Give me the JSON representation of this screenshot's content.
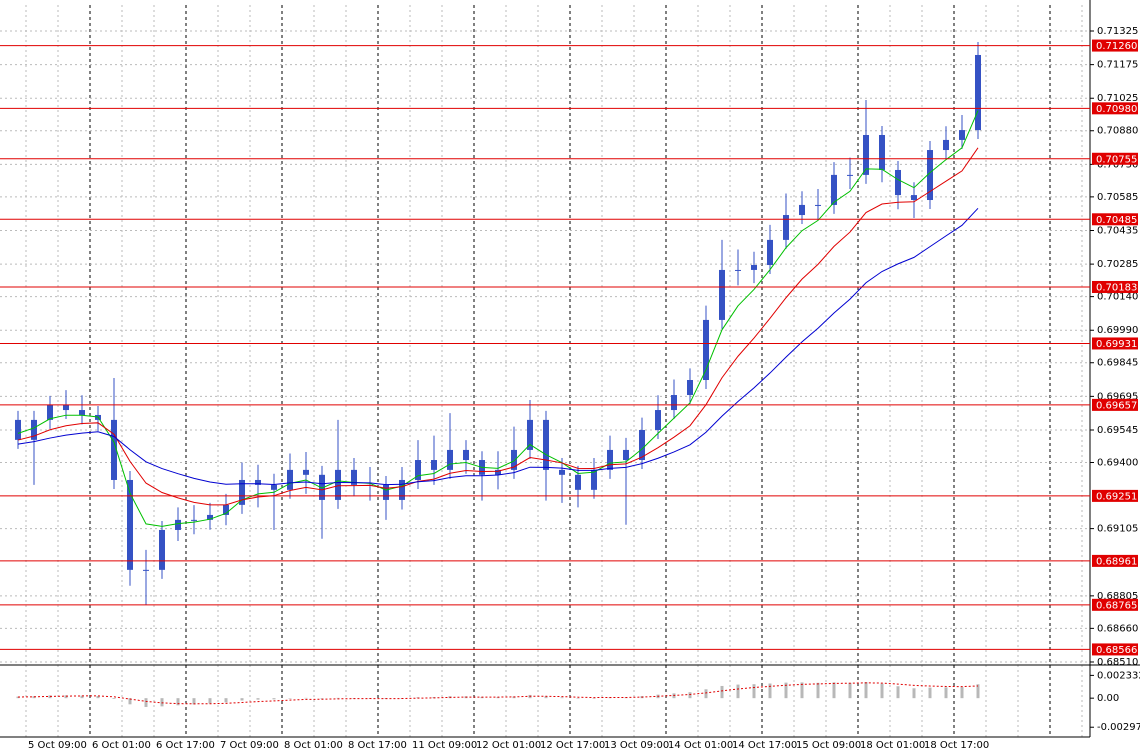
{
  "chart_data": [
    {
      "type": "candlestick",
      "categories": [
        null,
        "5 Oct 09:00",
        null,
        null,
        null,
        "6 Oct 01:00",
        null,
        null,
        null,
        "6 Oct 17:00",
        null,
        null,
        null,
        "7 Oct 09:00",
        null,
        null,
        null,
        "8 Oct 01:00",
        null,
        null,
        null,
        "8 Oct 17:00",
        null,
        null,
        null,
        "11 Oct 09:00",
        null,
        null,
        null,
        "12 Oct 01:00",
        null,
        null,
        null,
        "12 Oct 17:00",
        null,
        null,
        null,
        "13 Oct 09:00",
        null,
        null,
        null,
        "14 Oct 01:00",
        null,
        null,
        null,
        "14 Oct 17:00",
        null,
        null,
        null,
        "15 Oct 09:00",
        null,
        null,
        null,
        "18 Oct 01:00",
        null,
        null,
        null,
        "18 Oct 17:00",
        null,
        null,
        null
      ],
      "open": [
        0.6959,
        0.69501,
        0.6959,
        0.69657,
        0.69634,
        0.69612,
        0.6959,
        0.69322,
        0.68921,
        0.68921,
        0.69099,
        0.69144,
        0.69144,
        0.69166,
        0.69211,
        0.69322,
        0.693,
        0.69278,
        0.69367,
        0.69345,
        0.69233,
        0.69367,
        0.693,
        0.693,
        0.69233,
        0.69322,
        0.69411,
        0.69367,
        0.69456,
        0.69411,
        0.69345,
        0.69367,
        0.69456,
        0.6959,
        0.69367,
        0.69345,
        0.69278,
        0.69367,
        0.69456,
        0.69411,
        0.69545,
        0.69634,
        0.69701,
        0.69768,
        0.70036,
        0.70259,
        0.70259,
        0.70281,
        0.70393,
        0.70504,
        0.70549,
        0.70549,
        0.70683,
        0.70683,
        0.70861,
        0.70705,
        0.70593,
        0.70571,
        0.70794,
        0.70839,
        0.70883
      ],
      "high": [
        0.6963,
        0.6963,
        0.69697,
        0.69723,
        0.697,
        0.69652,
        0.69777,
        0.69362,
        0.6901,
        0.69139,
        0.692,
        0.6921,
        0.6922,
        0.6926,
        0.694,
        0.6939,
        0.6935,
        0.6944,
        0.69447,
        0.69385,
        0.6959,
        0.6942,
        0.6938,
        0.6934,
        0.6938,
        0.695,
        0.6952,
        0.6962,
        0.695,
        0.6945,
        0.6945,
        0.6956,
        0.69679,
        0.6963,
        0.6942,
        0.69385,
        0.6942,
        0.6952,
        0.6951,
        0.696,
        0.697,
        0.6977,
        0.6982,
        0.701,
        0.70393,
        0.7035,
        0.7034,
        0.7046,
        0.706,
        0.7061,
        0.7062,
        0.7074,
        0.7076,
        0.71017,
        0.70901,
        0.70745,
        0.7065,
        0.70834,
        0.709,
        0.7095,
        0.71276
      ],
      "low": [
        0.69461,
        0.693,
        0.6955,
        0.69594,
        0.6957,
        0.6954,
        0.69282,
        0.6885,
        0.68765,
        0.68881,
        0.6905,
        0.6908,
        0.691,
        0.6912,
        0.69171,
        0.692,
        0.69099,
        0.69238,
        0.6926,
        0.6906,
        0.69193,
        0.6925,
        0.6923,
        0.69144,
        0.6919,
        0.69282,
        0.693,
        0.69327,
        0.6935,
        0.6923,
        0.6928,
        0.69327,
        0.69416,
        0.6923,
        0.6922,
        0.692,
        0.69238,
        0.69327,
        0.69122,
        0.69371,
        0.69505,
        0.69594,
        0.69661,
        0.69728,
        0.69996,
        0.7019,
        0.702,
        0.70241,
        0.70353,
        0.70464,
        0.7048,
        0.70509,
        0.7062,
        0.70643,
        0.7065,
        0.7053,
        0.70491,
        0.70531,
        0.70754,
        0.70799,
        0.70843
      ],
      "close": [
        0.69501,
        0.6959,
        0.69657,
        0.69634,
        0.69612,
        0.6959,
        0.69322,
        0.68921,
        0.68921,
        0.69099,
        0.69144,
        0.69144,
        0.69166,
        0.69211,
        0.69322,
        0.693,
        0.69278,
        0.69367,
        0.69345,
        0.69233,
        0.69367,
        0.693,
        0.693,
        0.69233,
        0.69322,
        0.69411,
        0.69367,
        0.69456,
        0.69411,
        0.69345,
        0.69367,
        0.69456,
        0.6959,
        0.69367,
        0.69345,
        0.69278,
        0.69367,
        0.69456,
        0.69411,
        0.69545,
        0.69634,
        0.69701,
        0.69768,
        0.70036,
        0.70259,
        0.70259,
        0.70281,
        0.70393,
        0.70504,
        0.70549,
        0.70549,
        0.70683,
        0.70683,
        0.70861,
        0.70705,
        0.70593,
        0.70571,
        0.70794,
        0.70839,
        0.70883,
        0.71218
      ],
      "color": "#3552c4",
      "series": [
        {
          "color": "#00c000",
          "values": [
            0.6953,
            0.69554,
            0.69595,
            0.69611,
            0.69611,
            0.69603,
            0.69491,
            0.69263,
            0.69126,
            0.69115,
            0.69127,
            0.69134,
            0.69147,
            0.69173,
            0.69233,
            0.6926,
            0.69267,
            0.69307,
            0.69322,
            0.69286,
            0.69318,
            0.69311,
            0.69307,
            0.69277,
            0.69295,
            0.69341,
            0.69351,
            0.69393,
            0.694,
            0.69378,
            0.69374,
            0.69407,
            0.6948,
            0.69435,
            0.69399,
            0.69351,
            0.69357,
            0.69397,
            0.69403,
            0.6946,
            0.6953,
            0.69598,
            0.69666,
            0.69814,
            0.69992,
            0.70099,
            0.70172,
            0.7026,
            0.70358,
            0.70434,
            0.7048,
            0.70561,
            0.7061,
            0.7071,
            0.70708,
            0.70662,
            0.70626,
            0.70693,
            0.70751,
            0.70804,
            0.7097
          ]
        },
        {
          "color": "#e00000",
          "values": [
            0.695,
            0.69518,
            0.69546,
            0.69564,
            0.69574,
            0.69577,
            0.69526,
            0.69405,
            0.69308,
            0.69266,
            0.69242,
            0.69222,
            0.69211,
            0.69211,
            0.69233,
            0.69246,
            0.69252,
            0.69275,
            0.69289,
            0.69278,
            0.69296,
            0.69297,
            0.69298,
            0.69285,
            0.69292,
            0.69316,
            0.69326,
            0.69352,
            0.69364,
            0.6936,
            0.69361,
            0.6938,
            0.69422,
            0.69411,
            0.69398,
            0.69374,
            0.69373,
            0.6939,
            0.69394,
            0.69424,
            0.69466,
            0.69513,
            0.69564,
            0.69658,
            0.69778,
            0.69874,
            0.69955,
            0.70043,
            0.70135,
            0.70218,
            0.70284,
            0.70364,
            0.70428,
            0.70515,
            0.70553,
            0.70561,
            0.70563,
            0.70609,
            0.70655,
            0.70701,
            0.70804
          ]
        },
        {
          "color": "#0000d0",
          "values": [
            0.69482,
            0.69493,
            0.69509,
            0.69522,
            0.69531,
            0.69537,
            0.69516,
            0.69457,
            0.69403,
            0.69373,
            0.6935,
            0.69329,
            0.69313,
            0.69303,
            0.69305,
            0.69305,
            0.69302,
            0.69309,
            0.69313,
            0.69305,
            0.69311,
            0.6931,
            0.69309,
            0.69301,
            0.69303,
            0.69314,
            0.69319,
            0.69333,
            0.69341,
            0.69341,
            0.69344,
            0.69355,
            0.69379,
            0.69378,
            0.69375,
            0.69365,
            0.69365,
            0.69374,
            0.69378,
            0.69395,
            0.69419,
            0.69447,
            0.69479,
            0.69535,
            0.69607,
            0.69672,
            0.69733,
            0.69799,
            0.6987,
            0.69938,
            0.69999,
            0.70067,
            0.70129,
            0.70202,
            0.70252,
            0.70286,
            0.70315,
            0.70363,
            0.70411,
            0.70458,
            0.70534
          ]
        }
      ],
      "levels": [
        {
          "value": 0.7126,
          "label": "0.71260"
        },
        {
          "value": 0.7098,
          "label": "0.70980"
        },
        0.70755,
        0.70485,
        0.70183,
        0.69931,
        0.69657,
        0.69251,
        0.68961,
        0.68765,
        0.68566
      ],
      "level_color": "#e00000",
      "ylim": [
        0.68501,
        0.71441
      ],
      "yticks": [
        0.71325,
        0.71175,
        0.71025,
        {
          "value": 0.7088,
          "label": "0.70880"
        },
        {
          "value": 0.7073,
          "label": "0.70730"
        },
        0.70585,
        0.70435,
        0.70285,
        {
          "value": 0.7014,
          "label": "0.70140"
        },
        {
          "value": 0.6999,
          "label": "0.69990"
        },
        0.69845,
        0.69695,
        0.69545,
        {
          "value": 0.694,
          "label": "0.69400"
        },
        0.69105,
        0.68805,
        {
          "value": 0.6866,
          "label": "0.68660"
        },
        {
          "value": 0.6851,
          "label": "0.68510"
        }
      ],
      "grid": true
    },
    {
      "type": "macd",
      "values": [
        0.00016,
        0.0002,
        0.00028,
        0.00029,
        0.00026,
        0.00022,
        -8e-05,
        -0.00063,
        -0.0009,
        -0.00084,
        -0.00073,
        -0.00064,
        -0.00054,
        -0.00043,
        -0.00024,
        -0.00015,
        -0.00012,
        -1e-05,
        3e-05,
        -6e-05,
        3e-05,
        1e-05,
        -1e-05,
        -8e-05,
        -3e-05,
        9e-05,
        0.00011,
        0.0002,
        0.00019,
        0.00012,
        0.0001,
        0.00017,
        0.00033,
        0.00019,
        8e-05,
        -5e-05,
        -3e-05,
        8e-05,
        8e-05,
        0.00021,
        0.00036,
        0.00049,
        0.00061,
        0.00091,
        0.00125,
        0.00139,
        0.00143,
        0.0015,
        0.00159,
        0.00161,
        0.00157,
        0.00161,
        0.00157,
        0.00165,
        0.00148,
        0.00122,
        0.00101,
        0.00108,
        0.00111,
        0.00113,
        0.00142
      ],
      "color": "#b8b8b8",
      "signal": [
        0.00012,
        0.00014,
        0.00018,
        0.00021,
        0.00023,
        0.00023,
        0.00014,
        -9e-05,
        -0.00033,
        -0.00048,
        -0.00056,
        -0.00058,
        -0.00057,
        -0.00053,
        -0.00044,
        -0.00035,
        -0.00028,
        -0.0002,
        -0.00013,
        -0.00011,
        -7e-05,
        -5e-05,
        -4e-05,
        -5e-05,
        -4e-05,
        0,
        3e-05,
        8e-05,
        0.00011,
        0.00011,
        0.00011,
        0.00013,
        0.00019,
        0.00019,
        0.00016,
        0.0001,
        6e-05,
        7e-05,
        7e-05,
        0.00011,
        0.00019,
        0.00028,
        0.00038,
        0.00054,
        0.00075,
        0.00094,
        0.00109,
        0.00121,
        0.00132,
        0.00141,
        0.00146,
        0.00151,
        0.00153,
        0.00157,
        0.00154,
        0.00144,
        0.00131,
        0.00124,
        0.0012,
        0.00118,
        0.00125
      ],
      "signal_color": "#e00000",
      "ylim": [
        -0.00377,
        0.00319
      ],
      "yticks": [
        0.002332,
        {
          "value": 0,
          "label": "0.00"
        },
        -0.002974
      ]
    }
  ]
}
